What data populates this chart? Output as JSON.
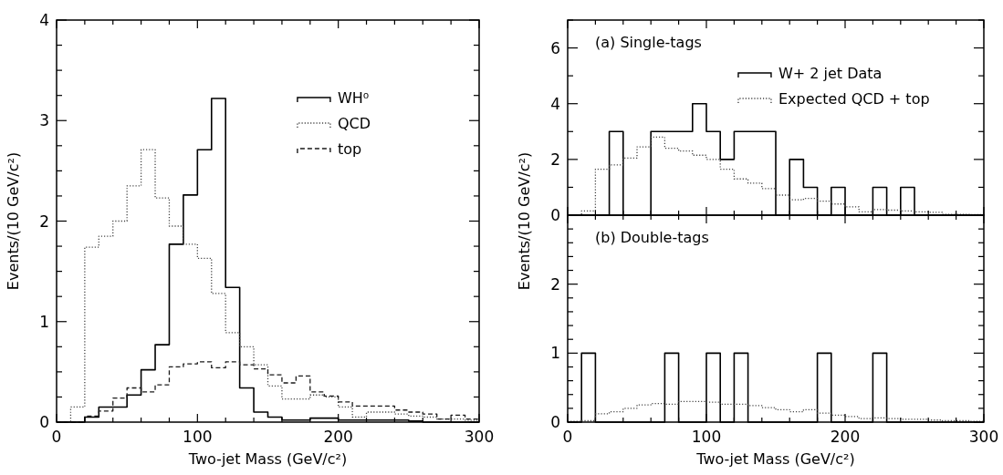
{
  "chart_data": [
    {
      "type": "histogram",
      "xlabel": "Two-jet Mass (GeV/c²)",
      "ylabel": "Events/(10 GeV/c²)",
      "bins": [
        0,
        10,
        20,
        30,
        40,
        50,
        60,
        70,
        80,
        90,
        100,
        110,
        120,
        130,
        140,
        150,
        160,
        170,
        180,
        190,
        200,
        210,
        220,
        230,
        240,
        250,
        260,
        270,
        280,
        290,
        300
      ],
      "xlim": [
        0,
        300
      ],
      "ylim": [
        0,
        4
      ],
      "xticks": [
        0,
        {
          "value": 20,
          "label": null
        },
        {
          "value": 40,
          "label": null
        },
        {
          "value": 60,
          "label": null
        },
        {
          "value": 80,
          "label": null
        },
        100,
        {
          "value": 120,
          "label": null
        },
        {
          "value": 140,
          "label": null
        },
        {
          "value": 160,
          "label": null
        },
        {
          "value": 180,
          "label": null
        },
        200,
        {
          "value": 220,
          "label": null
        },
        {
          "value": 240,
          "label": null
        },
        {
          "value": 260,
          "label": null
        },
        {
          "value": 280,
          "label": null
        },
        300
      ],
      "yticks": [
        0,
        {
          "value": 0.25,
          "label": null
        },
        {
          "value": 0.5,
          "label": null
        },
        {
          "value": 0.75,
          "label": null
        },
        1,
        {
          "value": 1.25,
          "label": null
        },
        {
          "value": 1.5,
          "label": null
        },
        {
          "value": 1.75,
          "label": null
        },
        2,
        {
          "value": 2.25,
          "label": null
        },
        {
          "value": 2.5,
          "label": null
        },
        {
          "value": 2.75,
          "label": null
        },
        3,
        {
          "value": 3.25,
          "label": null
        },
        {
          "value": 3.5,
          "label": null
        },
        {
          "value": 3.75,
          "label": null
        },
        4
      ],
      "legend": "top right",
      "series": [
        {
          "name": "WH⁰",
          "color": "#000000",
          "line_style": "solid",
          "values": [
            0,
            0,
            0.05,
            0.15,
            0.15,
            0.27,
            0.52,
            0.77,
            1.77,
            2.26,
            2.71,
            3.22,
            1.34,
            0.34,
            0.1,
            0.05,
            0.02,
            0.02,
            0.04,
            0.04,
            0.02,
            0.02,
            0.02,
            0.02,
            0.02,
            0.01,
            0,
            0,
            0,
            0
          ]
        },
        {
          "name": "QCD",
          "color": "#444444",
          "line_style": "dotted",
          "values": [
            0,
            0.15,
            1.74,
            1.85,
            2.0,
            2.35,
            2.71,
            2.23,
            1.95,
            1.77,
            1.63,
            1.28,
            0.89,
            0.75,
            0.57,
            0.36,
            0.23,
            0.23,
            0.27,
            0.25,
            0.15,
            0.05,
            0.1,
            0.1,
            0.08,
            0.06,
            0.05,
            0.03,
            0.03,
            0.02
          ]
        },
        {
          "name": "top",
          "color": "#1a1a1a",
          "line_style": "dashed",
          "values": [
            0,
            0,
            0.06,
            0.11,
            0.24,
            0.34,
            0.3,
            0.37,
            0.55,
            0.58,
            0.6,
            0.54,
            0.6,
            0.57,
            0.53,
            0.47,
            0.39,
            0.46,
            0.3,
            0.26,
            0.2,
            0.16,
            0.16,
            0.16,
            0.12,
            0.1,
            0.08,
            0.03,
            0.07,
            0.03
          ]
        }
      ]
    },
    {
      "type": "histogram",
      "ylabel": "Events/(10 GeV/c²)",
      "annotations": [
        "(a) Single-tags"
      ],
      "bins": [
        0,
        10,
        20,
        30,
        40,
        50,
        60,
        70,
        80,
        90,
        100,
        110,
        120,
        130,
        140,
        150,
        160,
        170,
        180,
        190,
        200,
        210,
        220,
        230,
        240,
        250,
        260,
        270,
        280,
        290,
        300
      ],
      "xlim": [
        0,
        300
      ],
      "ylim": [
        0,
        7
      ],
      "tick_labels": "y",
      "xticks": [
        0,
        {
          "value": 20,
          "label": null
        },
        {
          "value": 40,
          "label": null
        },
        {
          "value": 60,
          "label": null
        },
        {
          "value": 80,
          "label": null
        },
        100,
        {
          "value": 120,
          "label": null
        },
        {
          "value": 140,
          "label": null
        },
        {
          "value": 160,
          "label": null
        },
        {
          "value": 180,
          "label": null
        },
        200,
        {
          "value": 220,
          "label": null
        },
        {
          "value": 240,
          "label": null
        },
        {
          "value": 260,
          "label": null
        },
        {
          "value": 280,
          "label": null
        },
        300
      ],
      "yticks": [
        0,
        {
          "value": 1,
          "label": null
        },
        2,
        {
          "value": 3,
          "label": null
        },
        4,
        {
          "value": 5,
          "label": null
        },
        6,
        {
          "value": 7,
          "label": null
        }
      ],
      "legend": "top right",
      "series": [
        {
          "name": "W+ 2 jet Data",
          "color": "#000000",
          "line_style": "solid",
          "values": [
            0,
            0,
            0,
            3,
            0,
            0,
            3,
            3,
            3,
            4,
            3,
            2,
            3,
            3,
            3,
            0,
            2,
            1,
            0,
            1,
            0,
            0,
            1,
            0,
            1,
            0,
            0,
            0,
            0,
            0
          ]
        },
        {
          "name": "Expected QCD + top",
          "color": "#444444",
          "line_style": "dotted",
          "values": [
            0,
            0.15,
            1.65,
            1.8,
            2.05,
            2.45,
            2.8,
            2.4,
            2.3,
            2.15,
            2.0,
            1.65,
            1.3,
            1.15,
            0.95,
            0.72,
            0.55,
            0.6,
            0.5,
            0.4,
            0.3,
            0.12,
            0.2,
            0.18,
            0.15,
            0.12,
            0.1,
            0.03,
            0.03,
            0.02
          ]
        }
      ]
    },
    {
      "type": "histogram",
      "xlabel": "Two-jet Mass (GeV/c²)",
      "annotations": [
        "(b) Double-tags"
      ],
      "bins": [
        0,
        10,
        20,
        30,
        40,
        50,
        60,
        70,
        80,
        90,
        100,
        110,
        120,
        130,
        140,
        150,
        160,
        170,
        180,
        190,
        200,
        210,
        220,
        230,
        240,
        250,
        260,
        270,
        280,
        290,
        300
      ],
      "xlim": [
        0,
        300
      ],
      "ylim": [
        0,
        3
      ],
      "xticks": [
        0,
        {
          "value": 20,
          "label": null
        },
        {
          "value": 40,
          "label": null
        },
        {
          "value": 60,
          "label": null
        },
        {
          "value": 80,
          "label": null
        },
        100,
        {
          "value": 120,
          "label": null
        },
        {
          "value": 140,
          "label": null
        },
        {
          "value": 160,
          "label": null
        },
        {
          "value": 180,
          "label": null
        },
        200,
        {
          "value": 220,
          "label": null
        },
        {
          "value": 240,
          "label": null
        },
        {
          "value": 260,
          "label": null
        },
        {
          "value": 280,
          "label": null
        },
        300
      ],
      "yticks": [
        0,
        {
          "value": 0.2,
          "label": null
        },
        {
          "value": 0.4,
          "label": null
        },
        {
          "value": 0.6,
          "label": null
        },
        {
          "value": 0.8,
          "label": null
        },
        1,
        {
          "value": 1.2,
          "label": null
        },
        {
          "value": 1.4,
          "label": null
        },
        {
          "value": 1.6,
          "label": null
        },
        {
          "value": 1.8,
          "label": null
        },
        2,
        {
          "value": 2.2,
          "label": null
        },
        {
          "value": 2.4,
          "label": null
        },
        {
          "value": 2.6,
          "label": null
        },
        {
          "value": 2.8,
          "label": null
        },
        {
          "value": 3,
          "label": null
        }
      ],
      "series": [
        {
          "color": "#000000",
          "line_style": "solid",
          "values": [
            0,
            1,
            0,
            0,
            0,
            0,
            0,
            1,
            0,
            0,
            1,
            0,
            1,
            0,
            0,
            0,
            0,
            0,
            1,
            0,
            0,
            0,
            1,
            0,
            0,
            0,
            0,
            0,
            0,
            0
          ]
        },
        {
          "color": "#444444",
          "line_style": "dotted",
          "values": [
            0.01,
            0.02,
            0.12,
            0.15,
            0.2,
            0.25,
            0.27,
            0.26,
            0.3,
            0.3,
            0.29,
            0.26,
            0.26,
            0.24,
            0.21,
            0.18,
            0.15,
            0.18,
            0.13,
            0.1,
            0.08,
            0.05,
            0.06,
            0.05,
            0.04,
            0.04,
            0.03,
            0.02,
            0.02,
            0.01
          ]
        }
      ]
    }
  ]
}
